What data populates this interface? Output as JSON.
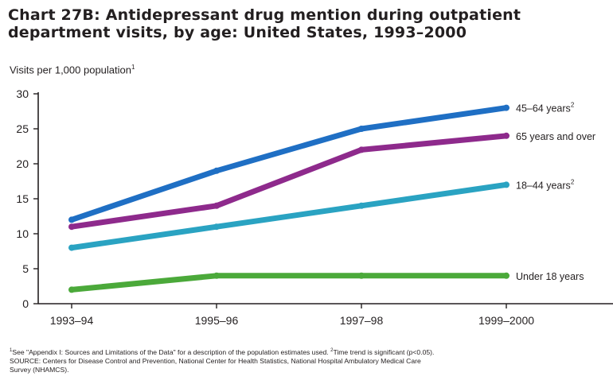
{
  "title_line1": "Chart 27B: Antidepressant drug mention during outpatient",
  "title_line2": "department visits, by age:  United States, 1993–2000",
  "footnotes": {
    "line1_mark1": "1",
    "line1_text1": "See \"Appendix I: Sources and Limitations of the Data\" for a description of the population estimates used. ",
    "line1_mark2": "2",
    "line1_text2": "Time trend is significant (p<0.05).",
    "line2": "SOURCE:  Centers for Disease Control and Prevention, National Center for Health Statistics, National Hospital Ambulatory Medical Care",
    "line3": "Survey (NHAMCS)."
  },
  "chart_data": {
    "type": "line",
    "title": "Antidepressant drug mention during outpatient department visits, by age:  United States, 1993–2000",
    "ylabel": "Visits per 1,000 population",
    "ylabel_mark": "1",
    "xlabel": "",
    "categories": [
      "1993–94",
      "1995–96",
      "1997–98",
      "1999–2000"
    ],
    "ylim": [
      0,
      30
    ],
    "yticks": [
      0,
      5,
      10,
      15,
      20,
      25,
      30
    ],
    "grid": false,
    "series": [
      {
        "name": "45–64 years",
        "mark": "2",
        "color": "#1f6fc4",
        "values": [
          12,
          19,
          25,
          28
        ]
      },
      {
        "name": "65 years and over",
        "mark": "",
        "color": "#8e2a8c",
        "values": [
          11,
          14,
          22,
          24
        ]
      },
      {
        "name": "18–44 years",
        "mark": "2",
        "color": "#2aa3c2",
        "values": [
          8,
          11,
          14,
          17
        ]
      },
      {
        "name": "Under 18 years",
        "mark": "",
        "color": "#4ba93a",
        "values": [
          2,
          4,
          4,
          4
        ]
      }
    ]
  }
}
